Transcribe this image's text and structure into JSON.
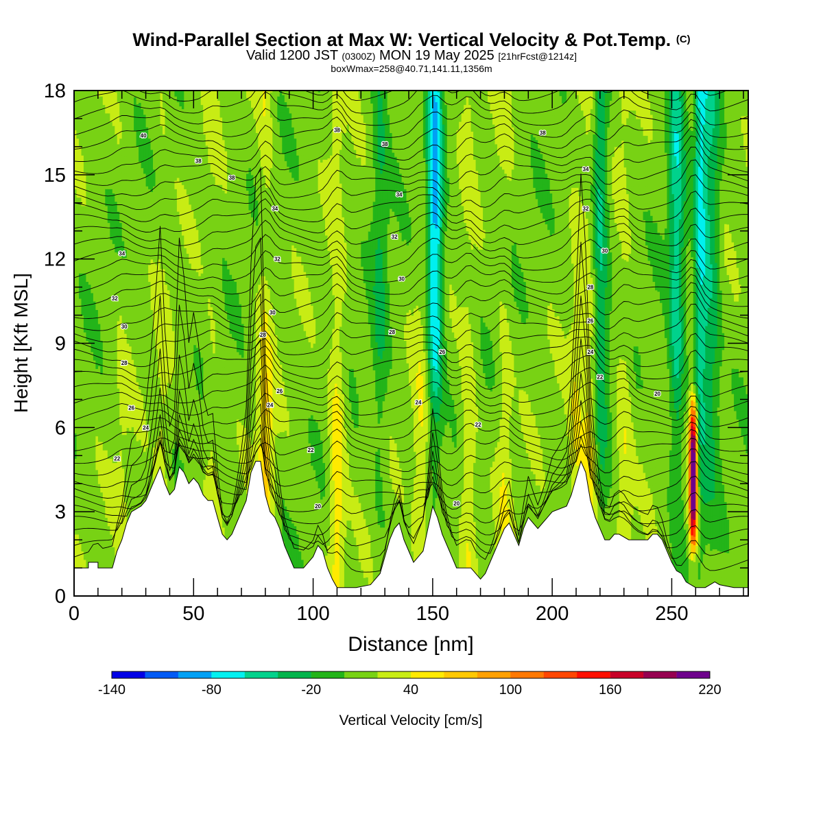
{
  "title": {
    "main": "Wind-Parallel Section at Max W: Vertical Velocity & Pot.Temp.",
    "copyright": "(C)",
    "valid_prefix": "Valid 1200 JST",
    "valid_zulu": "(0300Z)",
    "valid_date": "MON 19 May 2025",
    "forecast": "[21hrFcst@1214z]",
    "box_info": "boxWmax=258@40.71,141.11,1356m"
  },
  "chart_data": {
    "type": "heatmap",
    "xlabel": "Distance [nm]",
    "ylabel": "Height [Kft MSL]",
    "xlim": [
      0,
      282
    ],
    "ylim": [
      0,
      18
    ],
    "x_ticks": [
      0,
      50,
      100,
      150,
      200,
      250
    ],
    "y_ticks": [
      0,
      3,
      6,
      9,
      12,
      15,
      18
    ],
    "colorbar": {
      "label": "Vertical Velocity [cm/s]",
      "min": -140,
      "max": 220,
      "step": 20,
      "tick_labels": [
        "-140",
        "-80",
        "-20",
        "40",
        "100",
        "160",
        "220"
      ],
      "colors": [
        "#0000e6",
        "#005af5",
        "#00a0f5",
        "#00f0f0",
        "#00d28c",
        "#00b44b",
        "#23b419",
        "#78d214",
        "#c8ec14",
        "#ffea00",
        "#ffc800",
        "#ffa000",
        "#ff7800",
        "#ff4600",
        "#ff0f00",
        "#c80028",
        "#960050",
        "#6e008c"
      ]
    },
    "w_max": {
      "value": 258,
      "x": 259,
      "height_range": [
        1,
        7.7
      ]
    },
    "updraft_columns": [
      {
        "x": 20,
        "w": 12
      },
      {
        "x": 37,
        "w": 18
      },
      {
        "x": 58,
        "w": 16
      },
      {
        "x": 80,
        "w": 55
      },
      {
        "x": 110,
        "w": 45
      },
      {
        "x": 145,
        "w": 28
      },
      {
        "x": 151,
        "w": 40
      },
      {
        "x": 165,
        "w": 30
      },
      {
        "x": 180,
        "w": 25
      },
      {
        "x": 210,
        "w": 30
      },
      {
        "x": 216,
        "w": 45
      },
      {
        "x": 230,
        "w": 28
      },
      {
        "x": 259,
        "w": 258
      }
    ],
    "downdraft_columns": [
      {
        "x": 128,
        "w": -30
      },
      {
        "x": 151,
        "w": -110
      },
      {
        "x": 220,
        "w": -55
      },
      {
        "x": 252,
        "w": -60
      },
      {
        "x": 262,
        "w": -70
      },
      {
        "x": 267,
        "w": -40
      }
    ],
    "terrain_profile": [
      [
        0,
        1.0
      ],
      [
        6,
        1.0
      ],
      [
        6,
        1.2
      ],
      [
        10,
        1.2
      ],
      [
        10,
        1.0
      ],
      [
        16,
        1.0
      ],
      [
        18,
        1.6
      ],
      [
        20,
        2.0
      ],
      [
        22,
        2.6
      ],
      [
        24,
        3.0
      ],
      [
        28,
        3.2
      ],
      [
        30,
        3.4
      ],
      [
        32,
        3.8
      ],
      [
        34,
        4.2
      ],
      [
        36,
        4.6
      ],
      [
        38,
        4.0
      ],
      [
        40,
        3.6
      ],
      [
        42,
        3.8
      ],
      [
        44,
        4.6
      ],
      [
        46,
        4.4
      ],
      [
        48,
        4.0
      ],
      [
        50,
        4.2
      ],
      [
        52,
        4.0
      ],
      [
        54,
        3.6
      ],
      [
        56,
        3.4
      ],
      [
        58,
        3.4
      ],
      [
        60,
        2.8
      ],
      [
        62,
        2.2
      ],
      [
        64,
        2.0
      ],
      [
        66,
        2.2
      ],
      [
        68,
        2.6
      ],
      [
        70,
        3.0
      ],
      [
        72,
        3.4
      ],
      [
        74,
        4.4
      ],
      [
        76,
        4.8
      ],
      [
        78,
        4.8
      ],
      [
        80,
        3.6
      ],
      [
        82,
        3.0
      ],
      [
        84,
        2.8
      ],
      [
        86,
        2.4
      ],
      [
        88,
        1.8
      ],
      [
        90,
        1.4
      ],
      [
        92,
        1.0
      ],
      [
        96,
        1.0
      ],
      [
        98,
        1.2
      ],
      [
        100,
        1.4
      ],
      [
        102,
        1.8
      ],
      [
        104,
        1.6
      ],
      [
        106,
        1.0
      ],
      [
        108,
        0.6
      ],
      [
        110,
        0.3
      ],
      [
        118,
        0.3
      ],
      [
        124,
        0.4
      ],
      [
        126,
        0.6
      ],
      [
        128,
        0.8
      ],
      [
        130,
        1.4
      ],
      [
        132,
        2.0
      ],
      [
        134,
        2.4
      ],
      [
        136,
        2.6
      ],
      [
        138,
        2.0
      ],
      [
        140,
        1.6
      ],
      [
        142,
        1.2
      ],
      [
        146,
        1.6
      ],
      [
        148,
        2.4
      ],
      [
        150,
        3.2
      ],
      [
        152,
        2.8
      ],
      [
        154,
        2.2
      ],
      [
        156,
        1.8
      ],
      [
        158,
        1.4
      ],
      [
        160,
        1.0
      ],
      [
        164,
        1.0
      ],
      [
        166,
        1.0
      ],
      [
        168,
        0.8
      ],
      [
        170,
        0.6
      ],
      [
        172,
        0.8
      ],
      [
        174,
        1.2
      ],
      [
        176,
        1.6
      ],
      [
        178,
        2.0
      ],
      [
        180,
        2.4
      ],
      [
        182,
        2.6
      ],
      [
        184,
        2.2
      ],
      [
        186,
        1.8
      ],
      [
        188,
        2.4
      ],
      [
        190,
        2.8
      ],
      [
        194,
        2.4
      ],
      [
        196,
        2.6
      ],
      [
        198,
        2.8
      ],
      [
        200,
        3.0
      ],
      [
        206,
        3.2
      ],
      [
        208,
        3.6
      ],
      [
        210,
        4.2
      ],
      [
        212,
        4.8
      ],
      [
        214,
        4.4
      ],
      [
        216,
        3.4
      ],
      [
        218,
        2.8
      ],
      [
        220,
        2.4
      ],
      [
        222,
        2.0
      ],
      [
        224,
        2.0
      ],
      [
        226,
        2.2
      ],
      [
        228,
        2.2
      ],
      [
        232,
        2.0
      ],
      [
        236,
        2.0
      ],
      [
        240,
        2.0
      ],
      [
        242,
        2.2
      ],
      [
        244,
        2.2
      ],
      [
        246,
        2.0
      ],
      [
        248,
        1.6
      ],
      [
        250,
        1.2
      ],
      [
        252,
        0.9
      ],
      [
        254,
        0.8
      ],
      [
        256,
        0.5
      ],
      [
        260,
        0.3
      ],
      [
        264,
        0.3
      ],
      [
        268,
        0.5
      ],
      [
        270,
        0.4
      ],
      [
        276,
        0.3
      ],
      [
        282,
        0.3
      ]
    ],
    "isentrope_labels": [
      {
        "x": 29,
        "y": 16.4,
        "text": "40"
      },
      {
        "x": 52,
        "y": 15.5,
        "text": "38"
      },
      {
        "x": 66,
        "y": 14.9,
        "text": "38"
      },
      {
        "x": 84,
        "y": 13.8,
        "text": "34"
      },
      {
        "x": 110,
        "y": 16.6,
        "text": "38"
      },
      {
        "x": 130,
        "y": 16.1,
        "text": "38"
      },
      {
        "x": 136,
        "y": 14.3,
        "text": "34"
      },
      {
        "x": 134,
        "y": 12.8,
        "text": "32"
      },
      {
        "x": 137,
        "y": 11.3,
        "text": "30"
      },
      {
        "x": 133,
        "y": 9.4,
        "text": "28"
      },
      {
        "x": 154,
        "y": 8.7,
        "text": "26"
      },
      {
        "x": 144,
        "y": 6.9,
        "text": "24"
      },
      {
        "x": 169,
        "y": 6.1,
        "text": "22"
      },
      {
        "x": 20,
        "y": 12.2,
        "text": "34"
      },
      {
        "x": 17,
        "y": 10.6,
        "text": "32"
      },
      {
        "x": 21,
        "y": 9.6,
        "text": "30"
      },
      {
        "x": 21,
        "y": 8.3,
        "text": "28"
      },
      {
        "x": 24,
        "y": 6.7,
        "text": "26"
      },
      {
        "x": 30,
        "y": 6.0,
        "text": "24"
      },
      {
        "x": 18,
        "y": 4.9,
        "text": "22"
      },
      {
        "x": 85,
        "y": 12.0,
        "text": "32"
      },
      {
        "x": 83,
        "y": 10.1,
        "text": "30"
      },
      {
        "x": 79,
        "y": 9.3,
        "text": "28"
      },
      {
        "x": 86,
        "y": 7.3,
        "text": "26"
      },
      {
        "x": 82,
        "y": 6.8,
        "text": "24"
      },
      {
        "x": 99,
        "y": 5.2,
        "text": "22"
      },
      {
        "x": 102,
        "y": 3.2,
        "text": "20"
      },
      {
        "x": 160,
        "y": 3.3,
        "text": "20"
      },
      {
        "x": 196,
        "y": 16.5,
        "text": "38"
      },
      {
        "x": 214,
        "y": 15.2,
        "text": "34"
      },
      {
        "x": 214,
        "y": 13.8,
        "text": "32"
      },
      {
        "x": 222,
        "y": 12.3,
        "text": "30"
      },
      {
        "x": 216,
        "y": 11.0,
        "text": "28"
      },
      {
        "x": 216,
        "y": 9.8,
        "text": "26"
      },
      {
        "x": 216,
        "y": 8.7,
        "text": "24"
      },
      {
        "x": 220,
        "y": 7.8,
        "text": "22"
      },
      {
        "x": 244,
        "y": 7.2,
        "text": "20"
      }
    ]
  }
}
